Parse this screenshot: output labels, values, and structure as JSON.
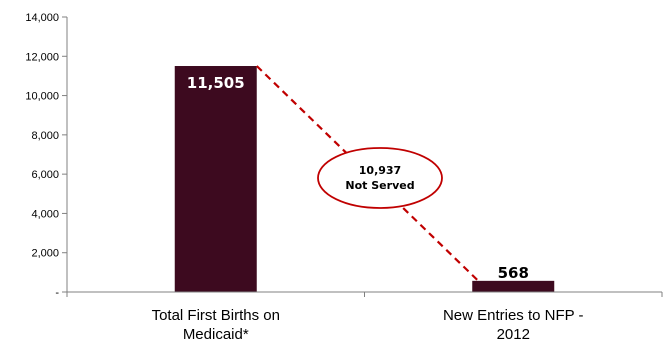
{
  "chart_data": {
    "type": "bar",
    "categories": [
      [
        "Total First Births on",
        "Medicaid*"
      ],
      [
        "New Entries to NFP -",
        "2012"
      ]
    ],
    "values": [
      11505,
      568
    ],
    "data_labels": [
      "11,505",
      "568"
    ],
    "ylim": [
      0,
      14000
    ],
    "yticks": [
      "-",
      "2,000",
      "4,000",
      "6,000",
      "8,000",
      "10,000",
      "12,000",
      "14,000"
    ],
    "grid": false,
    "annotation": {
      "lines": [
        "10,937",
        "Not Served"
      ],
      "style": "dashed connector with ellipse callout"
    },
    "colors": {
      "bar": "#3d0a1f",
      "connector": "#c00000",
      "ellipse": "#c00000"
    }
  }
}
